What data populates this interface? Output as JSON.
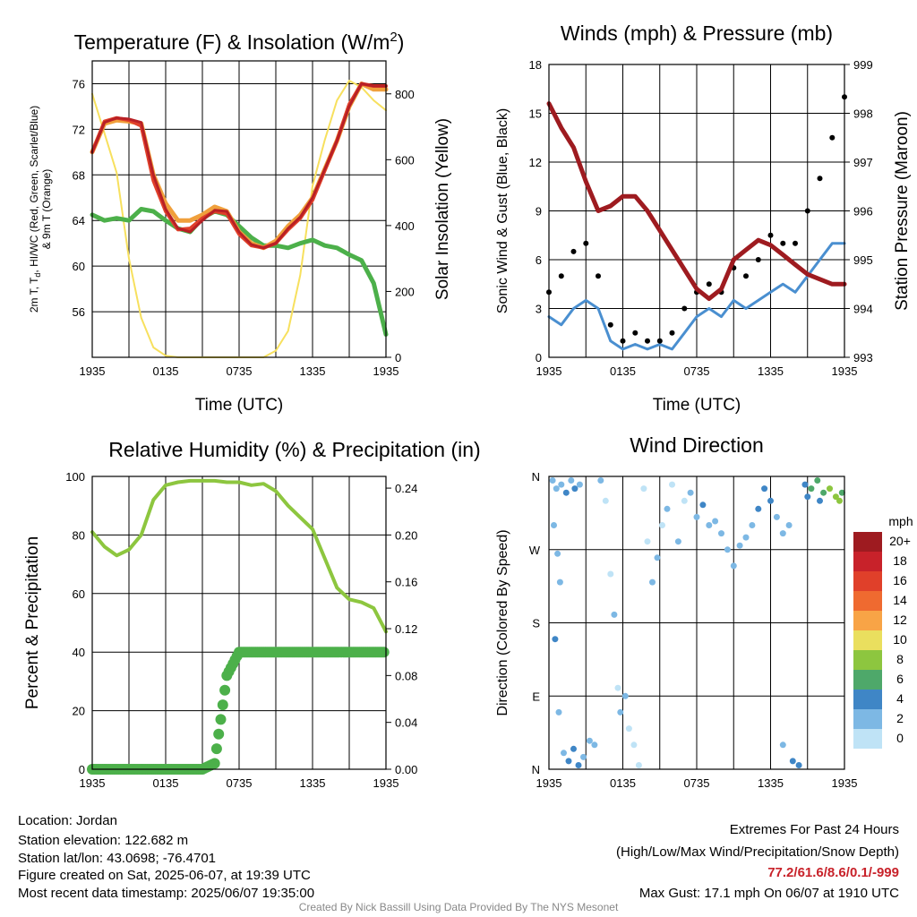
{
  "chart_data": [
    {
      "type": "line",
      "title": "Temperature (F) & Insolation (W/m²)",
      "xlabel": "Time (UTC)",
      "ylabel": "2m T, Td, HI/WC (Red, Green, Scarlet/Blue) & 9m T (Orange)",
      "ylabel_line1": "2m T, T",
      "ylabel_sub": "d",
      "ylabel_line1b": ", HI/WC (Red, Green, Scarlet/Blue)",
      "ylabel_line2": "& 9m T (Orange)",
      "y2label": "Solar Insolation (Yellow)",
      "title_main": "Temperature (F) & Insolation (W/m",
      "title_sup": "2",
      "title_end": ")",
      "x_ticks": [
        "1935",
        "0135",
        "0735",
        "1335",
        "1935"
      ],
      "ylim": [
        52,
        78
      ],
      "y_ticks": [
        56,
        60,
        64,
        68,
        72,
        76
      ],
      "y2lim": [
        0,
        900
      ],
      "y2_ticks": [
        0,
        200,
        400,
        600,
        800
      ],
      "grid": true,
      "x_hours": [
        0,
        1,
        2,
        3,
        4,
        5,
        6,
        7,
        8,
        9,
        10,
        11,
        12,
        13,
        14,
        15,
        16,
        17,
        18,
        19,
        20,
        21,
        22,
        23,
        24
      ],
      "series": [
        {
          "color": "#f0a03c",
          "values": [
            70.0,
            72.5,
            72.8,
            72.7,
            72.5,
            68.0,
            65.5,
            64.0,
            64.0,
            64.5,
            65.2,
            64.8,
            63.0,
            62.0,
            61.6,
            62.2,
            63.5,
            64.5,
            66.0,
            68.5,
            71.0,
            74.0,
            76.0,
            75.5,
            75.5
          ]
        },
        {
          "color": "#e0402a",
          "values": [
            70.0,
            72.7,
            73.0,
            72.8,
            72.3,
            67.5,
            64.8,
            63.2,
            63.3,
            64.2,
            64.8,
            64.6,
            62.8,
            61.8,
            61.6,
            62.0,
            63.2,
            64.2,
            65.8,
            68.4,
            71.0,
            74.2,
            76.0,
            75.8,
            75.8
          ]
        },
        {
          "color": "#b82025",
          "values": [
            70.0,
            72.6,
            73.0,
            72.9,
            72.6,
            68.0,
            65.0,
            63.3,
            63.0,
            64.0,
            64.9,
            64.8,
            63.0,
            61.9,
            61.6,
            62.0,
            63.3,
            64.3,
            66.0,
            68.5,
            71.0,
            74.0,
            76.0,
            75.8,
            75.8
          ]
        },
        {
          "color": "#4cb04a",
          "values": [
            64.5,
            64.0,
            64.2,
            64.0,
            65.0,
            64.8,
            64.0,
            63.3,
            63.0,
            64.2,
            64.8,
            64.5,
            63.5,
            62.5,
            61.8,
            61.8,
            61.6,
            62.0,
            62.3,
            61.8,
            61.6,
            61.0,
            60.5,
            58.5,
            54.0
          ]
        },
        {
          "color": "#f7e05e",
          "values": [
            800,
            680,
            560,
            300,
            120,
            30,
            5,
            0,
            0,
            0,
            0,
            0,
            0,
            0,
            0,
            20,
            80,
            250,
            520,
            660,
            780,
            840,
            820,
            780,
            750
          ],
          "axis": "y2"
        }
      ]
    },
    {
      "type": "line",
      "title": "Winds (mph) & Pressure (mb)",
      "xlabel": "Time (UTC)",
      "ylabel": "Sonic Wind & Gust (Blue, Black)",
      "y2label": "Station Pressure (Maroon)",
      "x_ticks": [
        "1935",
        "0135",
        "0735",
        "1335",
        "1935"
      ],
      "ylim": [
        0,
        18
      ],
      "y_ticks": [
        0,
        3,
        6,
        9,
        12,
        15,
        18
      ],
      "y2lim": [
        993,
        999
      ],
      "y2_ticks": [
        993,
        994,
        995,
        996,
        997,
        998,
        999
      ],
      "grid": true,
      "x_hours": [
        0,
        1,
        2,
        3,
        4,
        5,
        6,
        7,
        8,
        9,
        10,
        11,
        12,
        13,
        14,
        15,
        16,
        17,
        18,
        19,
        20,
        21,
        22,
        23,
        24
      ],
      "series": [
        {
          "color": "#4a8fd0",
          "values": [
            2.5,
            2.0,
            3.0,
            3.5,
            3.0,
            1.0,
            0.5,
            0.8,
            0.5,
            0.8,
            0.5,
            1.5,
            2.5,
            3.0,
            2.5,
            3.5,
            3.0,
            3.5,
            4.0,
            4.5,
            4.0,
            5.0,
            6.0,
            7.0,
            7.0
          ]
        },
        {
          "color": "#000000",
          "values": [
            4.0,
            5.0,
            6.5,
            7.0,
            5.0,
            2.0,
            1.0,
            1.5,
            1.0,
            1.0,
            1.5,
            3.0,
            4.0,
            4.5,
            4.0,
            5.5,
            5.0,
            6.0,
            7.5,
            7.0,
            7.0,
            9.0,
            11.0,
            13.5,
            16.0
          ]
        },
        {
          "color": "#9e1b20",
          "values": [
            998.2,
            997.7,
            997.3,
            996.6,
            996.0,
            996.1,
            996.3,
            996.3,
            996.0,
            995.6,
            995.2,
            994.8,
            994.4,
            994.2,
            994.4,
            995.0,
            995.2,
            995.4,
            995.3,
            995.1,
            994.9,
            994.7,
            994.6,
            994.5,
            994.5
          ],
          "axis": "y2"
        }
      ]
    },
    {
      "type": "line",
      "title": "Relative Humidity (%) & Precipitation (in)",
      "xlabel": "",
      "ylabel": "Percent & Precipitation",
      "x_ticks": [
        "1935",
        "0135",
        "0735",
        "1335",
        "1935"
      ],
      "ylim": [
        0,
        100
      ],
      "y_ticks": [
        0,
        20,
        40,
        60,
        80,
        100
      ],
      "y2lim": [
        0,
        0.25
      ],
      "y2_ticks": [
        "0.00",
        "0.04",
        "0.08",
        "0.12",
        "0.16",
        "0.20",
        "0.24"
      ],
      "grid": true,
      "x_hours": [
        0,
        1,
        2,
        3,
        4,
        5,
        6,
        7,
        8,
        9,
        10,
        11,
        12,
        13,
        14,
        15,
        16,
        17,
        18,
        19,
        20,
        21,
        22,
        23,
        24
      ],
      "series": [
        {
          "color": "#8dc63f",
          "values": [
            81,
            76,
            73,
            75,
            80,
            92,
            97,
            98,
            98.5,
            98.5,
            98.5,
            98,
            98,
            97,
            97.5,
            95,
            90,
            86,
            82,
            72,
            62,
            58,
            57,
            55,
            47
          ]
        },
        {
          "color": "#4cb04a",
          "values": [
            0,
            0,
            0,
            0,
            0,
            0,
            0,
            0,
            0,
            0,
            0.005,
            0.08,
            0.1,
            0.1,
            0.1,
            0.1,
            0.1,
            0.1,
            0.1,
            0.1,
            0.1,
            0.1,
            0.1,
            0.1,
            0.1
          ],
          "axis": "y2"
        }
      ]
    },
    {
      "type": "scatter",
      "title": "Wind Direction",
      "xlabel": "",
      "ylabel": "Direction (Colored By Speed)",
      "x_ticks": [
        "1935",
        "0135",
        "0735",
        "1335",
        "1935"
      ],
      "y_ticks": [
        "N",
        "E",
        "S",
        "W",
        "N"
      ],
      "ylim": [
        0,
        360
      ],
      "grid": true,
      "legend_title": "mph",
      "legend_labels": [
        "20+",
        "18",
        "16",
        "14",
        "12",
        "10",
        "8",
        "6",
        "4",
        "2",
        "0"
      ],
      "legend_colors": [
        "#9e1b20",
        "#c8222a",
        "#e0402a",
        "#ef6a30",
        "#f8a446",
        "#eadf5e",
        "#8dc63f",
        "#4ea86a",
        "#3f86c6",
        "#7db8e4",
        "#bfe3f6"
      ],
      "legend_placement": "right",
      "points": [
        {
          "x": 0.3,
          "dir": 355,
          "spd": 2
        },
        {
          "x": 0.6,
          "dir": 345,
          "spd": 3
        },
        {
          "x": 1.0,
          "dir": 350,
          "spd": 3
        },
        {
          "x": 1.4,
          "dir": 340,
          "spd": 4
        },
        {
          "x": 1.8,
          "dir": 355,
          "spd": 3
        },
        {
          "x": 2.1,
          "dir": 345,
          "spd": 4
        },
        {
          "x": 2.5,
          "dir": 350,
          "spd": 2
        },
        {
          "x": 0.4,
          "dir": 300,
          "spd": 2
        },
        {
          "x": 0.7,
          "dir": 265,
          "spd": 2
        },
        {
          "x": 0.9,
          "dir": 230,
          "spd": 3
        },
        {
          "x": 0.5,
          "dir": 160,
          "spd": 4
        },
        {
          "x": 0.8,
          "dir": 70,
          "spd": 2
        },
        {
          "x": 1.2,
          "dir": 20,
          "spd": 3
        },
        {
          "x": 1.6,
          "dir": 10,
          "spd": 4
        },
        {
          "x": 2.0,
          "dir": 25,
          "spd": 4
        },
        {
          "x": 2.4,
          "dir": 5,
          "spd": 4
        },
        {
          "x": 2.8,
          "dir": 15,
          "spd": 3
        },
        {
          "x": 3.3,
          "dir": 35,
          "spd": 2
        },
        {
          "x": 3.7,
          "dir": 30,
          "spd": 2
        },
        {
          "x": 4.2,
          "dir": 355,
          "spd": 2
        },
        {
          "x": 4.6,
          "dir": 330,
          "spd": 1
        },
        {
          "x": 5.0,
          "dir": 240,
          "spd": 1
        },
        {
          "x": 5.3,
          "dir": 190,
          "spd": 2
        },
        {
          "x": 5.6,
          "dir": 100,
          "spd": 1
        },
        {
          "x": 5.8,
          "dir": 70,
          "spd": 2
        },
        {
          "x": 6.2,
          "dir": 90,
          "spd": 2
        },
        {
          "x": 6.5,
          "dir": 50,
          "spd": 1
        },
        {
          "x": 6.9,
          "dir": 30,
          "spd": 1
        },
        {
          "x": 7.3,
          "dir": 5,
          "spd": 1
        },
        {
          "x": 7.7,
          "dir": 345,
          "spd": 1
        },
        {
          "x": 8.0,
          "dir": 280,
          "spd": 1
        },
        {
          "x": 8.4,
          "dir": 230,
          "spd": 2
        },
        {
          "x": 8.8,
          "dir": 260,
          "spd": 2
        },
        {
          "x": 9.2,
          "dir": 300,
          "spd": 1
        },
        {
          "x": 9.6,
          "dir": 320,
          "spd": 2
        },
        {
          "x": 10.0,
          "dir": 350,
          "spd": 1
        },
        {
          "x": 10.5,
          "dir": 280,
          "spd": 2
        },
        {
          "x": 11.0,
          "dir": 330,
          "spd": 1
        },
        {
          "x": 11.5,
          "dir": 340,
          "spd": 2
        },
        {
          "x": 12.0,
          "dir": 310,
          "spd": 3
        },
        {
          "x": 12.5,
          "dir": 325,
          "spd": 4
        },
        {
          "x": 13.0,
          "dir": 300,
          "spd": 2
        },
        {
          "x": 13.5,
          "dir": 305,
          "spd": 3
        },
        {
          "x": 14.0,
          "dir": 290,
          "spd": 3
        },
        {
          "x": 14.5,
          "dir": 270,
          "spd": 3
        },
        {
          "x": 15.0,
          "dir": 250,
          "spd": 2
        },
        {
          "x": 15.5,
          "dir": 275,
          "spd": 3
        },
        {
          "x": 16.0,
          "dir": 285,
          "spd": 2
        },
        {
          "x": 16.5,
          "dir": 300,
          "spd": 3
        },
        {
          "x": 17.0,
          "dir": 320,
          "spd": 4
        },
        {
          "x": 17.5,
          "dir": 345,
          "spd": 4
        },
        {
          "x": 18.0,
          "dir": 330,
          "spd": 4
        },
        {
          "x": 18.5,
          "dir": 310,
          "spd": 3
        },
        {
          "x": 19.0,
          "dir": 290,
          "spd": 3
        },
        {
          "x": 19.5,
          "dir": 300,
          "spd": 2
        },
        {
          "x": 19.0,
          "dir": 30,
          "spd": 3
        },
        {
          "x": 19.8,
          "dir": 10,
          "spd": 4
        },
        {
          "x": 20.3,
          "dir": 5,
          "spd": 4
        },
        {
          "x": 20.8,
          "dir": 350,
          "spd": 5
        },
        {
          "x": 21.3,
          "dir": 345,
          "spd": 6
        },
        {
          "x": 21.8,
          "dir": 355,
          "spd": 6
        },
        {
          "x": 22.3,
          "dir": 340,
          "spd": 7
        },
        {
          "x": 22.8,
          "dir": 345,
          "spd": 8
        },
        {
          "x": 23.3,
          "dir": 335,
          "spd": 8
        },
        {
          "x": 23.8,
          "dir": 340,
          "spd": 7
        },
        {
          "x": 23.6,
          "dir": 330,
          "spd": 8
        },
        {
          "x": 22.0,
          "dir": 330,
          "spd": 4
        },
        {
          "x": 21.0,
          "dir": 335,
          "spd": 5
        }
      ]
    }
  ],
  "footer": {
    "location": "Location: Jordan",
    "elevation": "Station elevation: 122.682 m",
    "latlon": "Station lat/lon: 43.0698; -76.4701",
    "created": "Figure created on Sat, 2025-06-07, at 19:39 UTC",
    "recent": "Most recent data timestamp: 2025/06/07 19:35:00",
    "extremes_title": "Extremes For Past 24 Hours",
    "extremes_sub": "(High/Low/Max Wind/Precipitation/Snow Depth)",
    "extremes_values": "77.2/61.6/8.6/0.1/-999",
    "max_gust": "Max Gust: 17.1 mph On 06/07 at 1910 UTC",
    "credit": "Created By Nick Bassill Using Data Provided By The NYS Mesonet"
  }
}
